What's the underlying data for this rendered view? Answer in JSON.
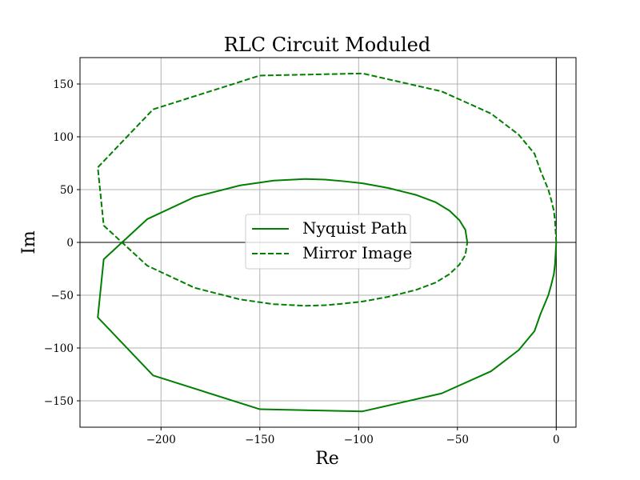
{
  "chart_data": {
    "type": "line",
    "title": "RLC Circuit Moduled",
    "xlabel": "Re",
    "ylabel": "Im",
    "xlim": [
      -241,
      10
    ],
    "ylim": [
      -175,
      175
    ],
    "grid": true,
    "xticks": [
      -200,
      -150,
      -100,
      -50,
      0
    ],
    "yticks": [
      -150,
      -100,
      -50,
      0,
      50,
      100,
      150
    ],
    "xtick_labels": [
      "−200",
      "−150",
      "−100",
      "−50",
      "0"
    ],
    "ytick_labels": [
      "−150",
      "−100",
      "−50",
      "0",
      "50",
      "100",
      "150"
    ],
    "legend_position": "center",
    "series": [
      {
        "name": "Nyquist Path",
        "color": "#008000",
        "style": "solid",
        "x": [
          0,
          -0.3,
          -0.6,
          -1.2,
          -2.5,
          -4,
          -8,
          -11,
          -19,
          -33,
          -58,
          -98,
          -150,
          -204,
          -232,
          -229,
          -207,
          -183,
          -160,
          -143,
          -127,
          -117,
          -108,
          -98,
          -85,
          -71,
          -61,
          -54,
          -49,
          -46,
          -45
        ],
        "y": [
          0,
          -10,
          -20,
          -30,
          -40,
          -50,
          -68,
          -84,
          -102,
          -122,
          -143,
          -160,
          -158,
          -126,
          -71,
          -16,
          22,
          43,
          54,
          58.5,
          60,
          59.5,
          58,
          56,
          51.5,
          45,
          38,
          30,
          21,
          12,
          0
        ]
      },
      {
        "name": "Mirror Image",
        "color": "#008000",
        "style": "dashed",
        "x": [
          0,
          -0.3,
          -0.6,
          -1.2,
          -2.5,
          -4,
          -8,
          -11,
          -19,
          -33,
          -58,
          -98,
          -150,
          -204,
          -232,
          -229,
          -207,
          -183,
          -160,
          -143,
          -127,
          -117,
          -108,
          -98,
          -85,
          -71,
          -61,
          -54,
          -49,
          -46,
          -45
        ],
        "y": [
          0,
          10,
          20,
          30,
          40,
          50,
          68,
          84,
          102,
          122,
          143,
          160,
          158,
          126,
          71,
          16,
          -22,
          -43,
          -54,
          -58.5,
          -60,
          -59.5,
          -58,
          -56,
          -51.5,
          -45,
          -38,
          -30,
          -21,
          -12,
          0
        ]
      }
    ]
  }
}
